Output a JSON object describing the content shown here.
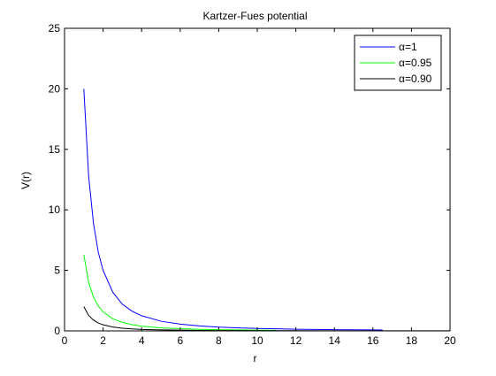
{
  "chart_data": {
    "type": "line",
    "title": "Kartzer-Fues potential",
    "xlabel": "r",
    "ylabel": "V(r)",
    "xlim": [
      0,
      20
    ],
    "ylim": [
      0,
      25
    ],
    "xticks": [
      0,
      2,
      4,
      6,
      8,
      10,
      12,
      14,
      16,
      18,
      20
    ],
    "yticks": [
      0,
      5,
      10,
      15,
      20,
      25
    ],
    "grid": false,
    "legend_position": "top-right",
    "series": [
      {
        "name": "α=1",
        "color": "#0000ff",
        "x": [
          1,
          1.25,
          1.5,
          1.75,
          2,
          2.5,
          3,
          3.5,
          4,
          5,
          6,
          7,
          8,
          9,
          10,
          11,
          12,
          13,
          14,
          15,
          16,
          16.5
        ],
        "y": [
          20,
          12.8,
          8.9,
          6.5,
          5.0,
          3.2,
          2.2,
          1.63,
          1.25,
          0.8,
          0.56,
          0.41,
          0.31,
          0.25,
          0.2,
          0.17,
          0.14,
          0.12,
          0.1,
          0.09,
          0.08,
          0.07
        ]
      },
      {
        "name": "α=0.95",
        "color": "#00ff00",
        "x": [
          1,
          1.25,
          1.5,
          1.75,
          2,
          2.5,
          3,
          3.5,
          4,
          5,
          6,
          7,
          8,
          9,
          10,
          11
        ],
        "y": [
          6.3,
          4.0,
          2.8,
          2.05,
          1.58,
          1.0,
          0.7,
          0.51,
          0.39,
          0.25,
          0.18,
          0.13,
          0.1,
          0.08,
          0.06,
          0.05
        ]
      },
      {
        "name": "α=0.90",
        "color": "#000000",
        "x": [
          1,
          1.25,
          1.5,
          1.75,
          2,
          2.5,
          3,
          3.5,
          4,
          5,
          6,
          7,
          8,
          9,
          10,
          12,
          14,
          16,
          18,
          20
        ],
        "y": [
          2.0,
          1.28,
          0.89,
          0.65,
          0.5,
          0.32,
          0.22,
          0.16,
          0.12,
          0.08,
          0.06,
          0.04,
          0.03,
          0.025,
          0.02,
          0.014,
          0.01,
          0.008,
          0.006,
          0.005
        ]
      }
    ]
  }
}
